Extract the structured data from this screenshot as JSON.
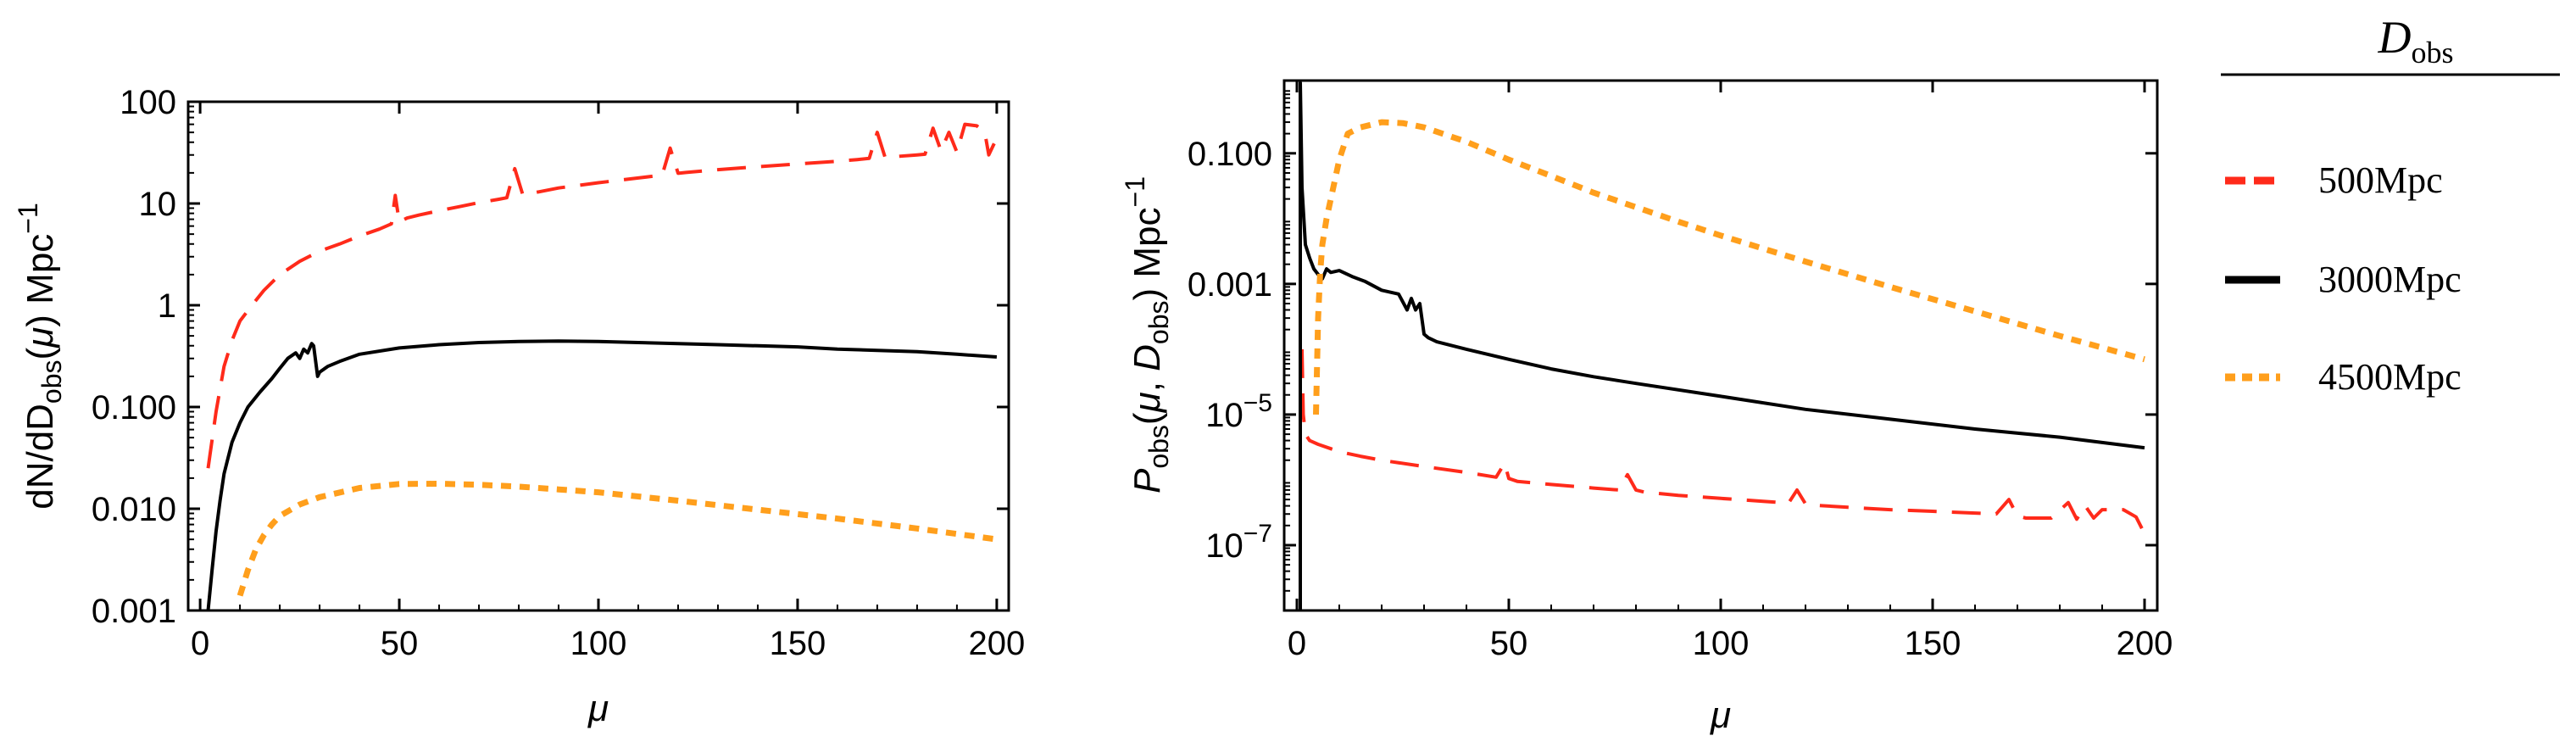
{
  "figure": {
    "legend": {
      "title_main": "D",
      "title_sub": "obs",
      "entries": [
        {
          "label": "500Mpc",
          "color": "#ff2a1a",
          "style": "dashed"
        },
        {
          "label": "3000Mpc",
          "color": "#000000",
          "style": "solid"
        },
        {
          "label": "4500Mpc",
          "color": "#ff9f1c",
          "style": "dotted"
        }
      ]
    }
  },
  "chart_data": [
    {
      "type": "line",
      "yscale": "log",
      "title": "",
      "xlabel": "μ",
      "ylabel_parts": {
        "pre": "dN/dD",
        "sub": "obs",
        "mid": "(",
        "mu": "μ",
        "post": ") Mpc",
        "sup": "−1"
      },
      "xlim": [
        -3,
        203
      ],
      "ylim": [
        0.001,
        100
      ],
      "xticks": [
        0,
        50,
        100,
        150,
        200
      ],
      "xtick_labels": [
        "0",
        "50",
        "100",
        "150",
        "200"
      ],
      "yticks": [
        0.001,
        0.01,
        0.1,
        1,
        10,
        100
      ],
      "ytick_labels": [
        "0.001",
        "0.010",
        "0.100",
        "1",
        "10",
        "100"
      ],
      "series": [
        {
          "name": "500Mpc",
          "color": "#ff2a1a",
          "style": "dashed",
          "x": [
            2,
            4,
            6,
            8,
            10,
            13,
            16,
            20,
            25,
            30,
            35,
            40,
            45,
            48,
            49,
            50,
            52,
            55,
            60,
            65,
            70,
            75,
            77,
            79,
            81,
            85,
            90,
            100,
            110,
            116,
            118,
            120,
            122,
            130,
            140,
            150,
            160,
            165,
            168,
            170,
            172,
            175,
            180,
            182,
            184,
            186,
            188,
            190,
            192,
            195,
            197,
            198,
            200
          ],
          "values": [
            0.025,
            0.09,
            0.25,
            0.45,
            0.7,
            1.0,
            1.4,
            2.0,
            2.7,
            3.4,
            4.0,
            4.8,
            5.6,
            6.3,
            12,
            6.6,
            7.2,
            7.7,
            8.5,
            9.3,
            10.2,
            11.0,
            11.4,
            22,
            12.2,
            13.0,
            14.2,
            16.0,
            17.8,
            19.0,
            35,
            19.8,
            20.2,
            21.5,
            23.0,
            24.5,
            26.0,
            27.0,
            27.8,
            50,
            28.2,
            29.0,
            30.0,
            30.5,
            55,
            33,
            50,
            32,
            60,
            58,
            50,
            30,
            44
          ]
        },
        {
          "name": "3000Mpc",
          "color": "#000000",
          "style": "solid",
          "x": [
            2,
            3,
            4,
            5,
            6,
            8,
            10,
            12,
            15,
            18,
            20,
            22,
            24,
            25,
            26,
            27,
            28,
            28.5,
            29.5,
            30,
            32,
            35,
            40,
            50,
            60,
            70,
            80,
            90,
            100,
            110,
            120,
            130,
            140,
            150,
            160,
            170,
            180,
            190,
            200
          ],
          "values": [
            0.001,
            0.0025,
            0.006,
            0.012,
            0.022,
            0.045,
            0.07,
            0.1,
            0.14,
            0.19,
            0.24,
            0.3,
            0.34,
            0.3,
            0.37,
            0.34,
            0.42,
            0.4,
            0.2,
            0.22,
            0.25,
            0.28,
            0.33,
            0.38,
            0.41,
            0.43,
            0.44,
            0.445,
            0.44,
            0.43,
            0.42,
            0.41,
            0.4,
            0.39,
            0.37,
            0.36,
            0.35,
            0.33,
            0.31
          ]
        },
        {
          "name": "4500Mpc",
          "color": "#ff9f1c",
          "style": "dotted",
          "x": [
            10,
            12,
            14,
            16,
            18,
            20,
            25,
            30,
            40,
            50,
            60,
            70,
            80,
            90,
            100,
            120,
            140,
            160,
            180,
            200
          ],
          "values": [
            0.0014,
            0.0025,
            0.004,
            0.0055,
            0.007,
            0.0085,
            0.011,
            0.013,
            0.016,
            0.0175,
            0.0176,
            0.0172,
            0.0165,
            0.0155,
            0.0145,
            0.012,
            0.0098,
            0.008,
            0.0064,
            0.005
          ]
        }
      ]
    },
    {
      "type": "line",
      "yscale": "log",
      "title": "",
      "xlabel": "μ",
      "ylabel_parts": {
        "p": "P",
        "psub": "obs",
        "open": "(",
        "mu": "μ",
        "comma": ", ",
        "d": "D",
        "dsub": "obs",
        "post": ") Mpc",
        "sup": "−1"
      },
      "xlim": [
        -3,
        203
      ],
      "ylim": [
        1e-08,
        1.3
      ],
      "xticks": [
        0,
        50,
        100,
        150,
        200
      ],
      "xtick_labels": [
        "0",
        "50",
        "100",
        "150",
        "200"
      ],
      "yticks": [
        1e-07,
        1e-05,
        0.001,
        0.1
      ],
      "ytick_labels": [
        {
          "base": "10",
          "exp": "−7"
        },
        {
          "base": "10",
          "exp": "−5"
        },
        {
          "plain": "0.001"
        },
        {
          "plain": "0.100"
        }
      ],
      "series": [
        {
          "name": "500Mpc",
          "color": "#ff2a1a",
          "style": "dashed",
          "x": [
            1.2,
            1.5,
            2,
            3,
            5,
            8,
            10,
            15,
            20,
            30,
            40,
            47,
            49,
            50,
            52,
            60,
            70,
            76,
            78,
            80,
            82,
            90,
            100,
            110,
            116,
            118,
            120,
            122,
            130,
            140,
            150,
            160,
            165,
            168,
            170,
            172,
            178,
            182,
            184,
            186,
            188,
            190,
            195,
            198,
            200
          ],
          "values": [
            0.0001,
            1e-05,
            5e-06,
            4e-06,
            3.5e-06,
            3e-06,
            2.7e-06,
            2.3e-06,
            2e-06,
            1.6e-06,
            1.3e-06,
            1.1e-06,
            1.8e-06,
            1.05e-06,
            9.5e-07,
            8.5e-07,
            7.5e-07,
            7e-07,
            1.2e-06,
            7e-07,
            6.5e-07,
            5.8e-07,
            5.2e-07,
            4.7e-07,
            4.4e-07,
            7e-07,
            4.3e-07,
            4.1e-07,
            3.8e-07,
            3.5e-07,
            3.3e-07,
            3.1e-07,
            3e-07,
            5e-07,
            2.8e-07,
            2.6e-07,
            2.6e-07,
            4.5e-07,
            2.5e-07,
            4e-07,
            2.6e-07,
            3.5e-07,
            3.5e-07,
            2.7e-07,
            1.5e-07
          ]
        },
        {
          "name": "3000Mpc",
          "color": "#000000",
          "style": "solid",
          "x": [
            0.8,
            0.8,
            1.2,
            2,
            3,
            4,
            5,
            6,
            7,
            8,
            10,
            13,
            16,
            20,
            24,
            26,
            27,
            28,
            29,
            30,
            31,
            33,
            40,
            50,
            60,
            70,
            80,
            100,
            120,
            140,
            160,
            180,
            200
          ],
          "values": [
            1e-08,
            1.2,
            0.03,
            0.004,
            0.0025,
            0.0017,
            0.0014,
            0.0012,
            0.0017,
            0.0015,
            0.0016,
            0.0013,
            0.0011,
            0.0008,
            0.0007,
            0.0004,
            0.0006,
            0.0004,
            0.0005,
            0.00017,
            0.00015,
            0.00013,
            0.0001,
            7e-05,
            5e-05,
            3.8e-05,
            3e-05,
            1.9e-05,
            1.2e-05,
            8.5e-06,
            6e-06,
            4.5e-06,
            3.1e-06
          ]
        },
        {
          "name": "4500Mpc",
          "color": "#ff9f1c",
          "style": "dotted",
          "x": [
            4.5,
            5,
            5.5,
            6,
            7,
            8,
            9,
            10,
            12,
            15,
            20,
            25,
            30,
            40,
            50,
            60,
            70,
            80,
            90,
            100,
            120,
            140,
            160,
            180,
            200
          ],
          "values": [
            1e-05,
            0.0003,
            0.0015,
            0.004,
            0.01,
            0.02,
            0.04,
            0.08,
            0.2,
            0.25,
            0.3,
            0.29,
            0.25,
            0.15,
            0.08,
            0.045,
            0.025,
            0.015,
            0.009,
            0.0055,
            0.0022,
            0.0009,
            0.00038,
            0.00016,
            7e-05
          ]
        }
      ]
    }
  ]
}
